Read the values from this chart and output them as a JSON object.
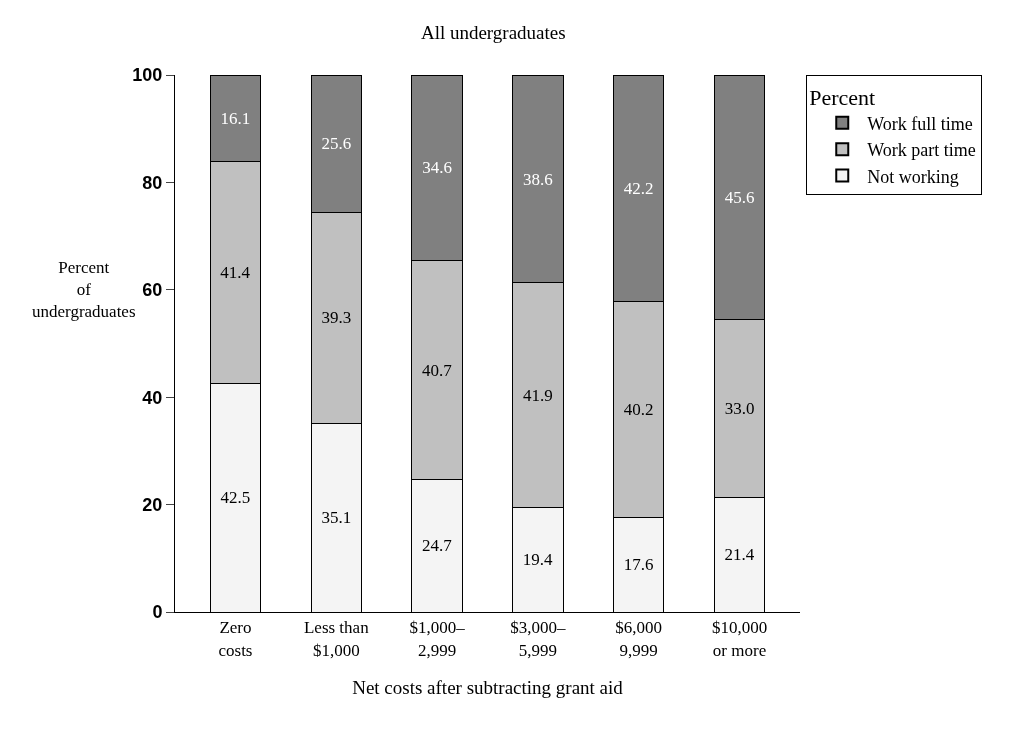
{
  "chart_data": {
    "type": "bar",
    "title": "All undergraduates",
    "xlabel": "Net costs after subtracting grant aid",
    "ylabel": "Percent\nof\nundergraduates",
    "legend_title": "Percent",
    "categories": [
      "Zero\ncosts",
      "Less than\n$1,000",
      "$1,000–\n2,999",
      "$3,000–\n5,999",
      "$6,000\n9,999",
      "$10,000\nor more"
    ],
    "series": [
      {
        "name": "Not working",
        "color": "#f4f4f4",
        "values": [
          42.5,
          35.1,
          24.7,
          19.4,
          17.6,
          21.4
        ],
        "value_labels": [
          "42.5",
          "35.1",
          "24.7",
          "19.4",
          "17.6",
          "21.4"
        ]
      },
      {
        "name": "Work part time",
        "color": "#c0c0c0",
        "values": [
          41.4,
          39.3,
          40.7,
          41.9,
          40.2,
          33.0
        ],
        "value_labels": [
          "41.4",
          "39.3",
          "40.7",
          "41.9",
          "40.2",
          "33.0"
        ]
      },
      {
        "name": "Work full time",
        "color": "#808080",
        "values": [
          16.1,
          25.6,
          34.6,
          38.6,
          42.2,
          45.6
        ],
        "value_labels": [
          "16.1",
          "25.6",
          "34.6",
          "38.6",
          "42.2",
          "45.6"
        ]
      }
    ],
    "stacked": true,
    "ylim": [
      0,
      100
    ],
    "yticks": [
      0,
      20,
      40,
      60,
      80,
      100
    ],
    "legend": "top right"
  }
}
